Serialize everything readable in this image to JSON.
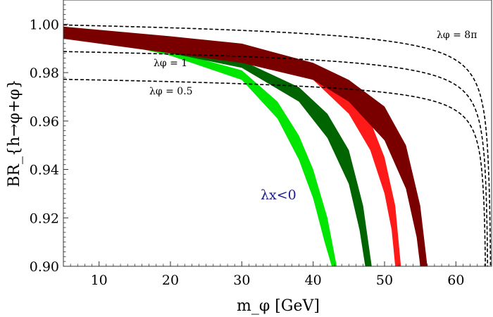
{
  "chart_data": {
    "type": "area",
    "xlabel": "m_φ [GeV]",
    "ylabel": "BR_{h→φ+φ}",
    "xlim": [
      5,
      65
    ],
    "ylim": [
      0.9,
      1.01
    ],
    "x_ticks": [
      10,
      20,
      30,
      40,
      50,
      60
    ],
    "x_tick_labels": [
      "10",
      "20",
      "30",
      "40",
      "50",
      "60"
    ],
    "y_ticks": [
      0.9,
      0.92,
      0.94,
      0.96,
      0.98,
      1.0
    ],
    "y_tick_labels": [
      "0.90",
      "0.92",
      "0.94",
      "0.96",
      "0.98",
      "1.00"
    ],
    "annotation": "λx<0",
    "bands": [
      {
        "name": "band-light-green",
        "color": "#00e600",
        "upper": [
          [
            5,
            0.999
          ],
          [
            20,
            0.989
          ],
          [
            30,
            0.981
          ],
          [
            35,
            0.968
          ],
          [
            38,
            0.954
          ],
          [
            40,
            0.94
          ],
          [
            42,
            0.92
          ],
          [
            43.3,
            0.9
          ]
        ],
        "lower": [
          [
            5,
            0.997
          ],
          [
            20,
            0.987
          ],
          [
            30,
            0.977
          ],
          [
            35,
            0.961
          ],
          [
            38,
            0.944
          ],
          [
            40,
            0.928
          ],
          [
            41.6,
            0.91
          ],
          [
            42.6,
            0.9
          ]
        ]
      },
      {
        "name": "band-dark-green",
        "color": "#006400",
        "upper": [
          [
            5,
            0.999
          ],
          [
            20,
            0.991
          ],
          [
            30,
            0.985
          ],
          [
            38,
            0.974
          ],
          [
            42,
            0.963
          ],
          [
            45,
            0.948
          ],
          [
            47,
            0.925
          ],
          [
            48.2,
            0.9
          ]
        ],
        "lower": [
          [
            5,
            0.997
          ],
          [
            20,
            0.988
          ],
          [
            30,
            0.982
          ],
          [
            38,
            0.968
          ],
          [
            42,
            0.953
          ],
          [
            45,
            0.934
          ],
          [
            46.5,
            0.915
          ],
          [
            47.3,
            0.9
          ]
        ]
      },
      {
        "name": "band-red",
        "color": "#ff1a1a",
        "upper": [
          [
            5,
            0.999
          ],
          [
            20,
            0.993
          ],
          [
            30,
            0.99
          ],
          [
            40,
            0.982
          ],
          [
            45,
            0.972
          ],
          [
            48,
            0.96
          ],
          [
            50,
            0.945
          ],
          [
            51.5,
            0.925
          ],
          [
            52.3,
            0.9
          ]
        ],
        "lower": [
          [
            5,
            0.996
          ],
          [
            20,
            0.99
          ],
          [
            30,
            0.987
          ],
          [
            40,
            0.977
          ],
          [
            45,
            0.963
          ],
          [
            48,
            0.948
          ],
          [
            50,
            0.93
          ],
          [
            51,
            0.915
          ],
          [
            51.5,
            0.9
          ]
        ]
      },
      {
        "name": "band-dark-red",
        "color": "#7a0000",
        "upper": [
          [
            5,
            0.999
          ],
          [
            20,
            0.995
          ],
          [
            30,
            0.992
          ],
          [
            40,
            0.984
          ],
          [
            45,
            0.977
          ],
          [
            50,
            0.966
          ],
          [
            53,
            0.95
          ],
          [
            55,
            0.925
          ],
          [
            56,
            0.9
          ]
        ],
        "lower": [
          [
            5,
            0.994
          ],
          [
            20,
            0.988
          ],
          [
            30,
            0.984
          ],
          [
            40,
            0.977
          ],
          [
            45,
            0.968
          ],
          [
            50,
            0.952
          ],
          [
            53,
            0.932
          ],
          [
            54.5,
            0.912
          ],
          [
            55,
            0.9
          ]
        ]
      }
    ],
    "series": [
      {
        "name": "λφ = 8π",
        "label": "λφ = 8π",
        "level": 1.0,
        "end": 64.9
      },
      {
        "name": "λφ = 1",
        "label": "λφ = 1",
        "level": 0.989,
        "end": 64.5
      },
      {
        "name": "λφ = 0.5",
        "label": "λφ = 0.5",
        "level": 0.9775,
        "end": 64.2
      }
    ]
  }
}
